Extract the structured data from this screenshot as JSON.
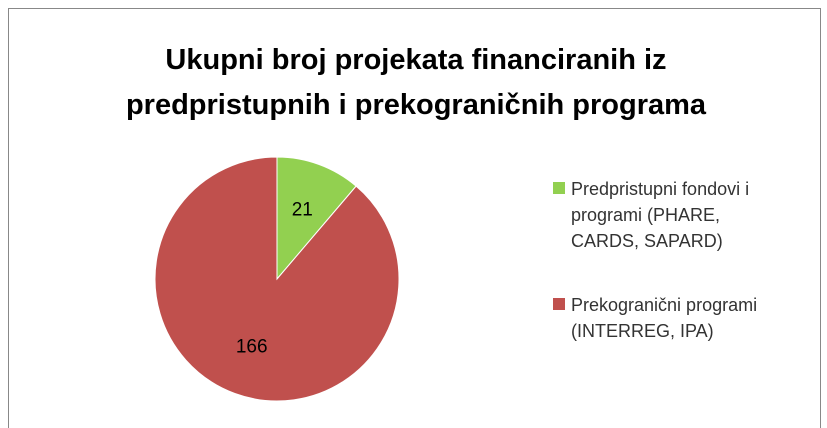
{
  "chart_data": {
    "type": "pie",
    "title": "Ukupni broj projekata financiranih iz predpristupnih i prekograničnih programa",
    "categories": [
      "Predpristupni fondovi i programi (PHARE, CARDS, SAPARD)",
      "Prekogranični programi (INTERREG, IPA)"
    ],
    "values": [
      21,
      166
    ],
    "colors": [
      "#92d050",
      "#c0504d"
    ],
    "legend": "right"
  }
}
